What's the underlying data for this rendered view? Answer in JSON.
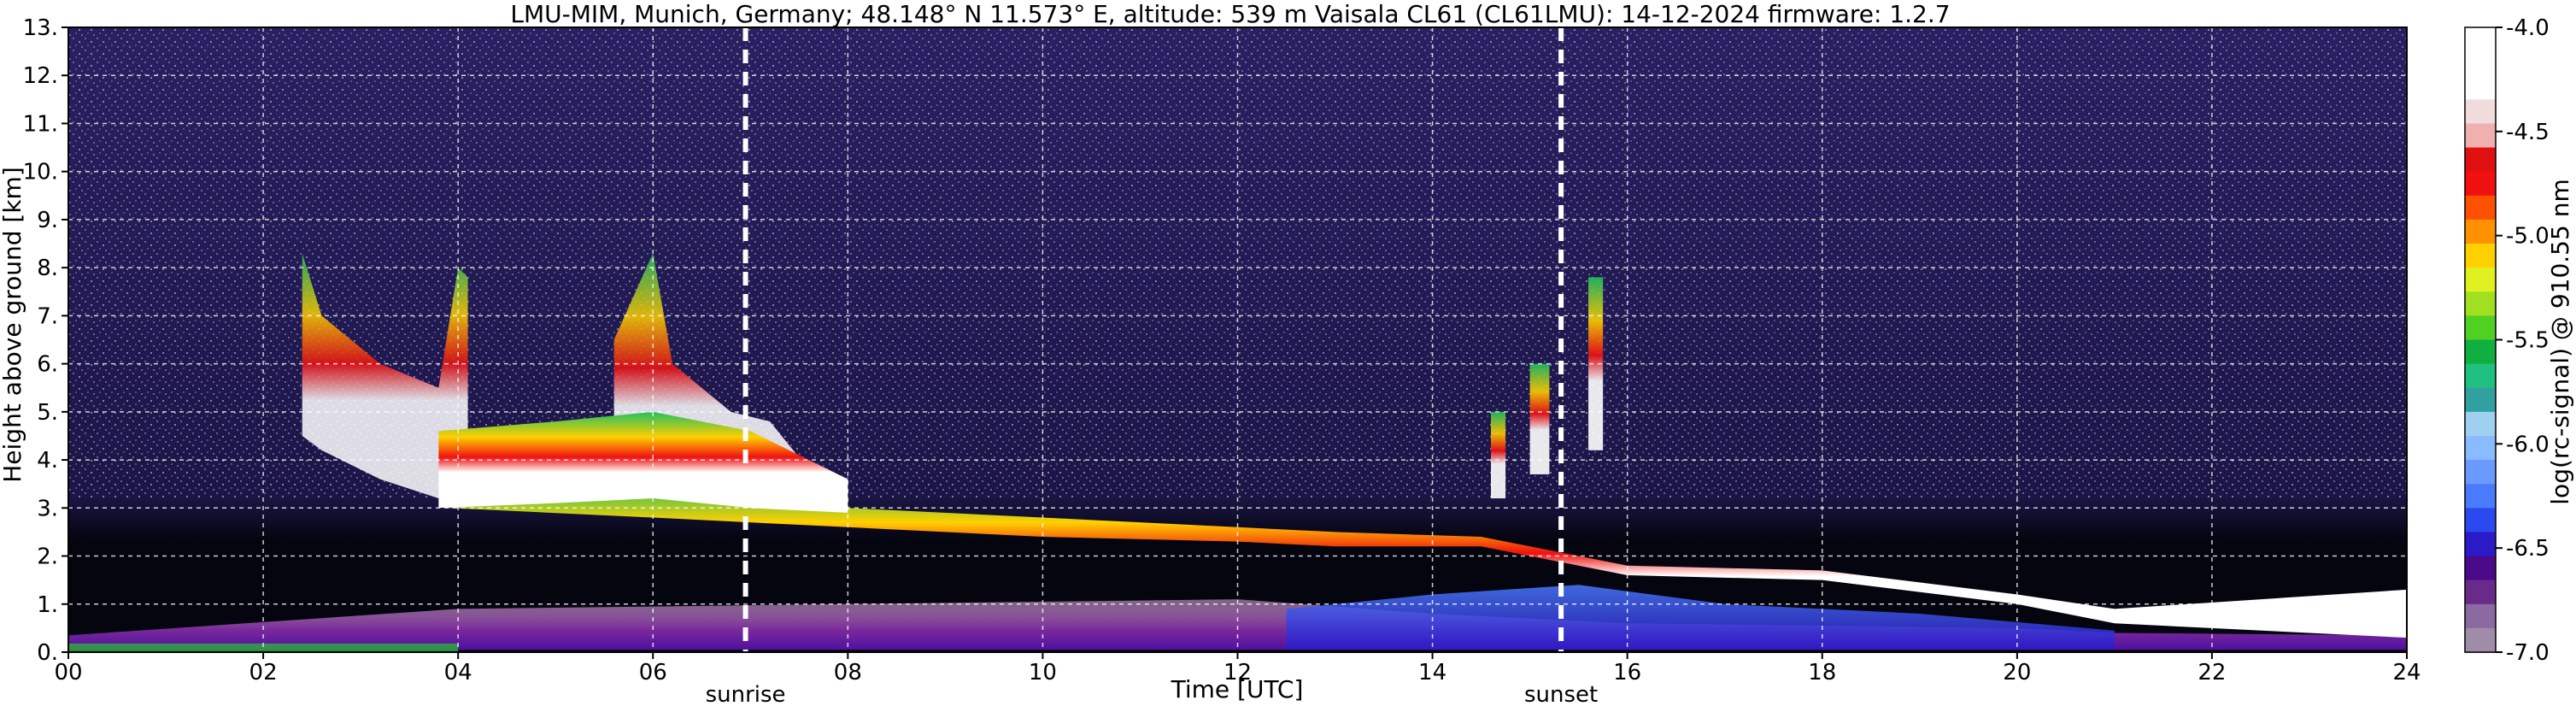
{
  "chart_data": {
    "type": "heatmap",
    "title": "LMU-MIM, Munich, Germany; 48.148° N 11.573° E, altitude: 539 m    Vaisala CL61 (CL61LMU): 14-12-2024    firmware: 1.2.7",
    "xlabel": "Time [UTC]",
    "ylabel": "Height above ground [km]",
    "xlim": [
      0,
      24
    ],
    "ylim": [
      0,
      13
    ],
    "x_ticks": [
      "00",
      "02",
      "04",
      "06",
      "08",
      "10",
      "12",
      "14",
      "16",
      "18",
      "20",
      "22",
      "24"
    ],
    "y_ticks": [
      "0.",
      "1.",
      "2.",
      "3.",
      "4.",
      "5.",
      "6.",
      "7.",
      "8.",
      "9.",
      "10.",
      "11.",
      "12.",
      "13."
    ],
    "grid": true,
    "markers": [
      {
        "label": "sunrise",
        "x": 6.95
      },
      {
        "label": "sunset",
        "x": 15.32
      }
    ],
    "colorbar": {
      "label": "log(rc-signal) @ 910.55 nm",
      "range": [
        -7.0,
        -4.0
      ],
      "ticks": [
        "-4.0",
        "-4.5",
        "-5.0",
        "-5.5",
        "-6.0",
        "-6.5",
        "-7.0"
      ],
      "colors": [
        "#a08ca8",
        "#8a6aa0",
        "#6a2a8a",
        "#4a0a8a",
        "#2a1ac8",
        "#2a4af0",
        "#4a7aff",
        "#6a9aff",
        "#8abaff",
        "#a0d0f0",
        "#30a0a0",
        "#20c080",
        "#10b040",
        "#50d020",
        "#a0e020",
        "#e0f020",
        "#ffd000",
        "#ff9000",
        "#ff5000",
        "#f01010",
        "#e01010",
        "#f0b0b0",
        "#f0dcdc",
        "#ffffff",
        "#ffffff",
        "#ffffff"
      ]
    },
    "background_color": "#1a1440",
    "features": [
      {
        "name": "aerosol-layer",
        "band": [
          [
            0,
            0.05,
            0.35
          ],
          [
            4,
            0.05,
            0.9
          ],
          [
            8,
            0.05,
            1.0
          ],
          [
            12,
            0.05,
            1.1
          ],
          [
            14,
            0.05,
            0.8
          ],
          [
            16,
            0.05,
            0.6
          ],
          [
            18,
            0.05,
            0.55
          ],
          [
            20,
            0.05,
            0.5
          ],
          [
            21,
            0.05,
            0.4
          ],
          [
            24,
            0.05,
            0.35
          ]
        ]
      },
      {
        "name": "cloud-base",
        "band": [
          [
            3.9,
            3.0,
            3.5
          ],
          [
            6,
            2.8,
            3.2
          ],
          [
            8,
            2.6,
            3.0
          ],
          [
            10,
            2.4,
            2.8
          ],
          [
            12,
            2.3,
            2.6
          ],
          [
            13,
            2.2,
            2.5
          ],
          [
            14.5,
            2.2,
            2.4
          ],
          [
            16,
            1.6,
            1.8
          ],
          [
            18,
            1.5,
            1.7
          ],
          [
            20,
            1.0,
            1.2
          ],
          [
            21,
            0.6,
            0.9
          ],
          [
            24,
            0.3,
            1.3
          ]
        ]
      }
    ]
  }
}
